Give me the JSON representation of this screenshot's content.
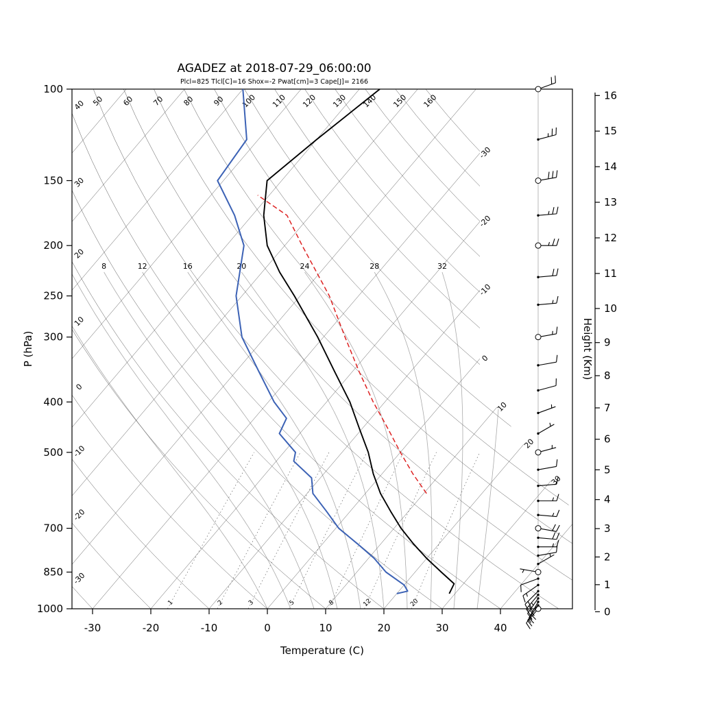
{
  "title": "AGADEZ at 2018-07-29_06:00:00",
  "subtitle": "Plcl=825 Tlcl[C]=16 Shox=-2 Pwat[cm]=3 Cape[J]= 2166",
  "colors": {
    "subtitle": "#cc5500",
    "temperature_trace": "#000000",
    "dewpoint_trace": "#3c62b5",
    "parcel_trace": "#dd2222",
    "grid": "#555555",
    "moist": "#aaaaaa",
    "mixing": "#444444",
    "frame": "#000000",
    "barbs": "#000000"
  },
  "axes": {
    "pressure_label": "P (hPa)",
    "pressure_ticks": [
      100,
      150,
      200,
      250,
      300,
      400,
      500,
      700,
      850,
      1000
    ],
    "temp_label": "Temperature (C)",
    "temp_ticks": [
      -30,
      -20,
      -10,
      0,
      10,
      20,
      30,
      40
    ],
    "height_label": "Height (Km)",
    "height_ticks": [
      0,
      1,
      2,
      3,
      4,
      5,
      6,
      7,
      8,
      9,
      10,
      11,
      12,
      13,
      14,
      15,
      16
    ]
  },
  "grid": {
    "isotherms": {
      "min": -110,
      "max": 40,
      "step": 10,
      "right_labels": [
        -30,
        -20,
        -10,
        0,
        10,
        20,
        30
      ]
    },
    "dry_adiabats": {
      "values": [
        -30,
        -20,
        -10,
        0,
        10,
        20,
        30,
        40,
        50,
        60,
        70,
        80,
        90,
        100,
        110,
        120,
        130,
        140,
        150,
        160
      ],
      "left_labels": [
        -30,
        -20,
        -10,
        0,
        10,
        20,
        30,
        40
      ],
      "top_labels": [
        50,
        60,
        70,
        80,
        90,
        100,
        110,
        120,
        130,
        140,
        150,
        160
      ]
    },
    "moist_adiabats": {
      "values": [
        0,
        4,
        8,
        12,
        16,
        20,
        24,
        28,
        32,
        36
      ],
      "labels": [
        8,
        12,
        16,
        20,
        24,
        28,
        32
      ],
      "label_pressure": 225
    },
    "mixing_ratio": {
      "values": [
        1,
        2,
        3,
        5,
        8,
        12,
        20
      ],
      "top_pressure": 500
    }
  },
  "chart_data": {
    "type": "skewt-logp",
    "station": "AGADEZ",
    "datetime": "2018-07-29_06:00:00",
    "indices": {
      "Plcl_hPa": 825,
      "Tlcl_C": 16,
      "Shox": -2,
      "Pwat_cm": 3,
      "Cape_J": 2166
    },
    "pressure_range_hPa": [
      100,
      1000
    ],
    "temperature_range_C": [
      -35,
      45
    ],
    "temperature_profile": [
      [
        935,
        29.0
      ],
      [
        895,
        28.4
      ],
      [
        850,
        24.5
      ],
      [
        800,
        20.0
      ],
      [
        750,
        15.6
      ],
      [
        700,
        11.2
      ],
      [
        650,
        7.0
      ],
      [
        600,
        2.6
      ],
      [
        550,
        -1.5
      ],
      [
        500,
        -5.5
      ],
      [
        450,
        -10.5
      ],
      [
        400,
        -16.0
      ],
      [
        350,
        -23.0
      ],
      [
        300,
        -31.0
      ],
      [
        250,
        -41.0
      ],
      [
        225,
        -47.0
      ],
      [
        200,
        -53.0
      ],
      [
        175,
        -58.0
      ],
      [
        150,
        -62.5
      ],
      [
        125,
        -60.0
      ],
      [
        100,
        -56.5
      ]
    ],
    "dewpoint_profile": [
      [
        935,
        20.0
      ],
      [
        925,
        21.5
      ],
      [
        900,
        20.0
      ],
      [
        850,
        15.0
      ],
      [
        800,
        11.0
      ],
      [
        750,
        6.0
      ],
      [
        700,
        0.5
      ],
      [
        650,
        -4.0
      ],
      [
        600,
        -9.0
      ],
      [
        560,
        -11.5
      ],
      [
        520,
        -17.0
      ],
      [
        500,
        -18.0
      ],
      [
        460,
        -23.5
      ],
      [
        430,
        -24.5
      ],
      [
        400,
        -29.0
      ],
      [
        350,
        -36.0
      ],
      [
        300,
        -44.0
      ],
      [
        250,
        -51.0
      ],
      [
        200,
        -57.0
      ],
      [
        175,
        -63.0
      ],
      [
        150,
        -71.0
      ],
      [
        125,
        -72.0
      ],
      [
        100,
        -80.0
      ]
    ],
    "parcel_profile": [
      [
        600,
        10.5
      ],
      [
        550,
        5.3
      ],
      [
        500,
        0.0
      ],
      [
        450,
        -5.6
      ],
      [
        400,
        -12.0
      ],
      [
        350,
        -18.8
      ],
      [
        300,
        -26.3
      ],
      [
        250,
        -35.0
      ],
      [
        200,
        -47.0
      ],
      [
        175,
        -54.0
      ],
      [
        160,
        -62.0
      ]
    ],
    "wind_profile": [
      {
        "p": 1000,
        "spd": 15,
        "dir": 220
      },
      {
        "p": 985,
        "spd": 15,
        "dir": 215
      },
      {
        "p": 970,
        "spd": 20,
        "dir": 210
      },
      {
        "p": 955,
        "spd": 20,
        "dir": 215
      },
      {
        "p": 940,
        "spd": 25,
        "dir": 220
      },
      {
        "p": 925,
        "spd": 20,
        "dir": 225
      },
      {
        "p": 900,
        "spd": 15,
        "dir": 235
      },
      {
        "p": 875,
        "spd": 10,
        "dir": 250
      },
      {
        "p": 850,
        "spd": 5,
        "dir": 280
      },
      {
        "p": 820,
        "spd": 5,
        "dir": 60
      },
      {
        "p": 790,
        "spd": 10,
        "dir": 80
      },
      {
        "p": 760,
        "spd": 15,
        "dir": 90
      },
      {
        "p": 730,
        "spd": 20,
        "dir": 95
      },
      {
        "p": 700,
        "spd": 20,
        "dir": 100
      },
      {
        "p": 660,
        "spd": 15,
        "dir": 95
      },
      {
        "p": 620,
        "spd": 15,
        "dir": 90
      },
      {
        "p": 580,
        "spd": 10,
        "dir": 85
      },
      {
        "p": 540,
        "spd": 10,
        "dir": 80
      },
      {
        "p": 500,
        "spd": 5,
        "dir": 75
      },
      {
        "p": 460,
        "spd": 5,
        "dir": 60
      },
      {
        "p": 420,
        "spd": 5,
        "dir": 70
      },
      {
        "p": 380,
        "spd": 10,
        "dir": 75
      },
      {
        "p": 340,
        "spd": 10,
        "dir": 80
      },
      {
        "p": 300,
        "spd": 15,
        "dir": 80
      },
      {
        "p": 260,
        "spd": 15,
        "dir": 85
      },
      {
        "p": 230,
        "spd": 20,
        "dir": 85
      },
      {
        "p": 200,
        "spd": 25,
        "dir": 90
      },
      {
        "p": 175,
        "spd": 25,
        "dir": 85
      },
      {
        "p": 150,
        "spd": 30,
        "dir": 80
      },
      {
        "p": 125,
        "spd": 25,
        "dir": 75
      },
      {
        "p": 100,
        "spd": 20,
        "dir": 70
      }
    ],
    "wind_circle_levels": [
      1000,
      850,
      700,
      500,
      400,
      300,
      250,
      200,
      150,
      100
    ]
  }
}
